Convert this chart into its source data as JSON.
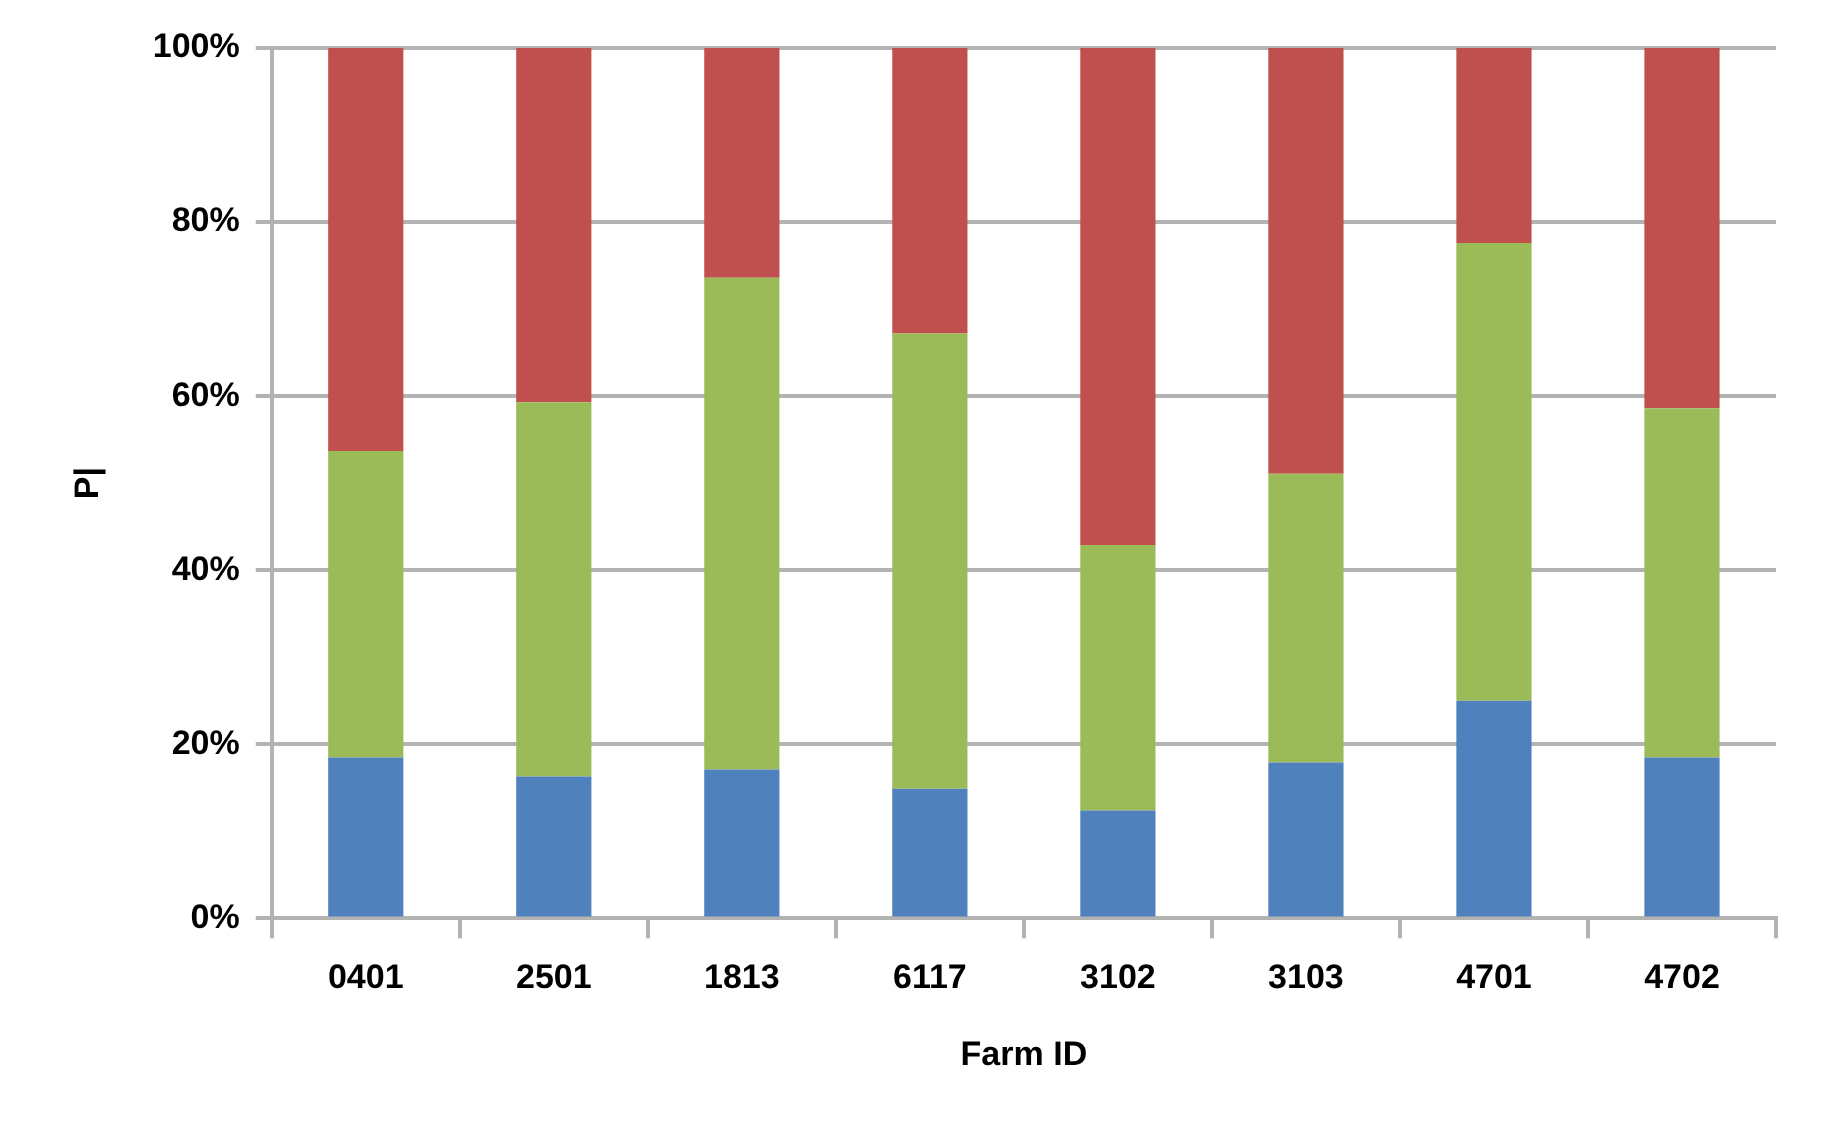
{
  "chart_data": {
    "type": "bar",
    "stacked": true,
    "xlabel": "Farm ID",
    "ylabel": "P|",
    "categories": [
      "0401",
      "2501",
      "1813",
      "6117",
      "3102",
      "3103",
      "4701",
      "4702"
    ],
    "series": [
      {
        "color": "#4f81bd",
        "values": [
          18.5,
          16.3,
          17.1,
          14.9,
          12.4,
          17.9,
          25.0,
          18.5
        ]
      },
      {
        "color": "#9bbb59",
        "values": [
          35.2,
          43.0,
          56.5,
          52.3,
          30.5,
          33.2,
          52.6,
          40.1
        ]
      },
      {
        "color": "#c0504d",
        "values": [
          46.3,
          40.7,
          26.4,
          32.8,
          57.1,
          48.9,
          22.4,
          41.4
        ]
      }
    ],
    "ylim": [
      0,
      100
    ],
    "yticks": [
      {
        "value": 0,
        "label": "0%"
      },
      {
        "value": 20,
        "label": "20%"
      },
      {
        "value": 40,
        "label": "40%"
      },
      {
        "value": 60,
        "label": "60%"
      },
      {
        "value": 80,
        "label": "80%"
      },
      {
        "value": 100,
        "label": "100%"
      }
    ],
    "grid": "y",
    "legend": false
  }
}
